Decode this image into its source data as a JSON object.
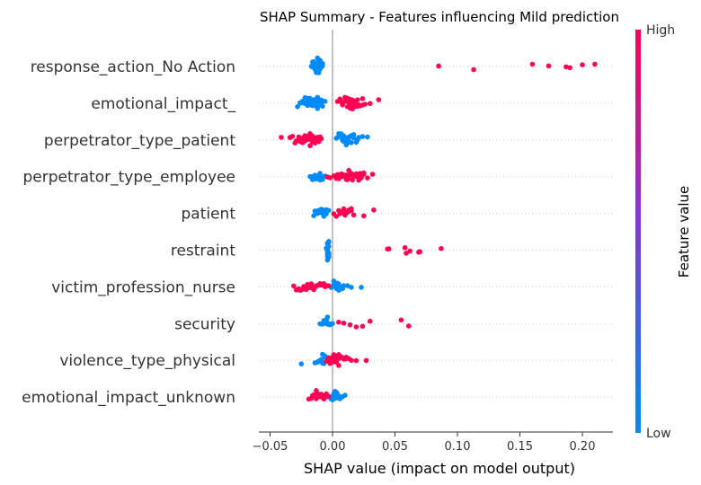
{
  "chart_data": {
    "type": "scatter",
    "subtype": "shap-beeswarm",
    "title": "SHAP Summary - Features influencing Mild prediction",
    "xlabel": "SHAP value (impact on model output)",
    "xlim": [
      -0.055,
      0.22
    ],
    "xticks": [
      -0.05,
      0.0,
      0.05,
      0.1,
      0.15,
      0.2
    ],
    "xtick_labels": [
      "−0.05",
      "0.00",
      "0.05",
      "0.10",
      "0.15",
      "0.20"
    ],
    "grid": "horizontal dotted per feature",
    "colorbar": {
      "label": "Feature value",
      "high_label": "High",
      "low_label": "Low",
      "low_color": "#008bfb",
      "high_color": "#ff0052"
    },
    "features": [
      {
        "name": "response_action_No Action",
        "low_points": [
          -0.017,
          -0.016,
          -0.015,
          -0.014,
          -0.013,
          -0.012,
          -0.011,
          -0.01,
          -0.009,
          -0.008,
          -0.016,
          -0.014,
          -0.012,
          -0.01,
          -0.008,
          -0.015,
          -0.013,
          -0.011,
          -0.009,
          -0.014,
          -0.012,
          -0.01,
          -0.013,
          -0.011,
          -0.012
        ],
        "high_points": [
          0.085,
          0.113,
          0.16,
          0.173,
          0.187,
          0.19,
          0.2,
          0.21
        ]
      },
      {
        "name": "emotional_impact_",
        "low_points": [
          -0.028,
          -0.026,
          -0.024,
          -0.022,
          -0.02,
          -0.018,
          -0.016,
          -0.014,
          -0.012,
          -0.01,
          -0.008,
          -0.006,
          -0.026,
          -0.023,
          -0.02,
          -0.017,
          -0.014,
          -0.011,
          -0.008,
          -0.022,
          -0.018,
          -0.015,
          -0.012,
          -0.009,
          -0.02,
          -0.016,
          -0.013,
          -0.01,
          -0.018,
          -0.014,
          -0.011,
          -0.016,
          -0.012,
          -0.021,
          -0.015
        ],
        "high_points": [
          0.004,
          0.006,
          0.008,
          0.01,
          0.012,
          0.014,
          0.016,
          0.018,
          0.02,
          0.022,
          0.024,
          0.026,
          0.03,
          0.037,
          0.006,
          0.009,
          0.012,
          0.015,
          0.018,
          0.021,
          0.024,
          0.008,
          0.011,
          0.014,
          0.017,
          0.02,
          0.01,
          0.013,
          0.016,
          0.019,
          0.012,
          0.015,
          0.018,
          0.014,
          0.016
        ]
      },
      {
        "name": "perpetrator_type_patient",
        "low_points": [
          0.003,
          0.005,
          0.007,
          0.009,
          0.011,
          0.013,
          0.015,
          0.017,
          0.019,
          0.021,
          0.024,
          0.028,
          0.005,
          0.008,
          0.011,
          0.014,
          0.017,
          0.02,
          0.007,
          0.01,
          0.013,
          0.016,
          0.009,
          0.012,
          0.015,
          0.011
        ],
        "high_points": [
          -0.041,
          -0.034,
          -0.032,
          -0.029,
          -0.027,
          -0.025,
          -0.023,
          -0.021,
          -0.019,
          -0.017,
          -0.015,
          -0.013,
          -0.011,
          -0.009,
          -0.03,
          -0.026,
          -0.022,
          -0.018,
          -0.014,
          -0.01,
          -0.024,
          -0.02,
          -0.016,
          -0.012,
          -0.022,
          -0.018,
          -0.014,
          -0.02,
          -0.016,
          -0.012,
          -0.018,
          -0.014,
          -0.016,
          -0.012,
          -0.017,
          -0.015
        ]
      },
      {
        "name": "perpetrator_type_employee",
        "low_points": [
          -0.018,
          -0.016,
          -0.014,
          -0.012,
          -0.01,
          -0.008,
          -0.006,
          -0.017,
          -0.014,
          -0.011,
          -0.008,
          -0.015,
          -0.012,
          -0.009,
          -0.013,
          -0.01,
          -0.012,
          -0.011
        ],
        "high_points": [
          -0.004,
          -0.002,
          0.001,
          0.003,
          0.005,
          0.007,
          0.009,
          0.011,
          0.013,
          0.015,
          0.017,
          0.019,
          0.021,
          0.023,
          0.025,
          0.028,
          0.032,
          0.004,
          0.007,
          0.01,
          0.013,
          0.016,
          0.019,
          0.022,
          0.025,
          0.008,
          0.011,
          0.014,
          0.017,
          0.02,
          0.012,
          0.015,
          0.018
        ]
      },
      {
        "name": "patient",
        "low_points": [
          -0.015,
          -0.013,
          -0.011,
          -0.009,
          -0.007,
          -0.005,
          -0.003,
          -0.014,
          -0.011,
          -0.008,
          -0.005,
          -0.012,
          -0.009,
          -0.006,
          -0.01,
          -0.007,
          -0.008
        ],
        "high_points": [
          0.001,
          0.003,
          0.005,
          0.007,
          0.009,
          0.011,
          0.013,
          0.015,
          0.017,
          0.025,
          0.033,
          0.006,
          0.009,
          0.012,
          0.015,
          0.01,
          0.013
        ]
      },
      {
        "name": "restraint",
        "low_points": [
          -0.005,
          -0.004,
          -0.004,
          -0.003,
          -0.003,
          -0.004,
          -0.003,
          -0.004,
          -0.003,
          -0.004,
          -0.003,
          -0.004,
          -0.003,
          -0.004,
          -0.003
        ],
        "high_points": [
          0.044,
          0.045,
          0.058,
          0.059,
          0.062,
          0.069,
          0.07,
          0.087
        ]
      },
      {
        "name": "victim_profession_nurse",
        "low_points": [
          -0.001,
          0.001,
          0.003,
          0.005,
          0.007,
          0.009,
          0.012,
          0.015,
          0.023,
          0.002,
          0.004,
          0.006,
          0.008,
          0.003,
          0.005,
          0.002,
          0.004,
          0.001,
          0.003
        ],
        "high_points": [
          -0.031,
          -0.029,
          -0.027,
          -0.025,
          -0.023,
          -0.021,
          -0.019,
          -0.017,
          -0.015,
          -0.013,
          -0.011,
          -0.009,
          -0.007,
          -0.005,
          -0.003,
          -0.026,
          -0.022,
          -0.018,
          -0.014,
          -0.01,
          -0.006,
          -0.02,
          -0.016,
          -0.012,
          -0.008
        ]
      },
      {
        "name": "security",
        "low_points": [
          -0.01,
          -0.008,
          -0.006,
          -0.004,
          -0.002,
          0.0,
          -0.007,
          -0.005,
          -0.003,
          -0.006,
          -0.004,
          -0.005,
          -0.004,
          -0.005
        ],
        "high_points": [
          0.005,
          0.009,
          0.014,
          0.019,
          0.024,
          0.03,
          0.055,
          0.061
        ]
      },
      {
        "name": "violence_type_physical",
        "low_points": [
          -0.025,
          -0.014,
          -0.012,
          -0.01,
          -0.008,
          -0.006,
          -0.004,
          -0.011,
          -0.008,
          -0.005,
          -0.009,
          -0.006,
          -0.007
        ],
        "high_points": [
          -0.005,
          -0.003,
          -0.001,
          0.001,
          0.003,
          0.005,
          0.007,
          0.009,
          0.011,
          0.013,
          0.015,
          0.019,
          0.027,
          -0.002,
          0.0,
          0.002,
          0.004,
          0.006,
          0.008,
          0.01,
          0.001,
          0.003,
          0.005,
          0.007,
          0.003,
          0.005
        ]
      },
      {
        "name": "emotional_impact_unknown",
        "low_points": [
          -0.004,
          -0.002,
          0.0,
          0.002,
          0.004,
          0.006,
          0.008,
          0.01,
          -0.001,
          0.001,
          0.003,
          0.005,
          0.007,
          0.0,
          0.002,
          0.004,
          0.001,
          0.003
        ],
        "high_points": [
          -0.019,
          -0.017,
          -0.015,
          -0.013,
          -0.011,
          -0.009,
          -0.007,
          -0.005,
          -0.003,
          -0.016,
          -0.013,
          -0.01,
          -0.007,
          -0.004,
          -0.012,
          -0.009,
          -0.006,
          -0.01
        ]
      }
    ]
  }
}
